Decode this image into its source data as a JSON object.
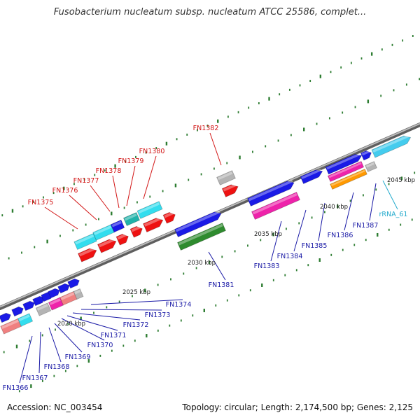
{
  "title": "Fusobacterium nucleatum subsp. nucleatum ATCC 25586, complet...",
  "footer": {
    "accession": "Accession: NC_003454",
    "topology": "Topology: circular; Length: 2,174,500 bp; Genes: 2,125"
  },
  "colors": {
    "backbone": "#8a8a8a",
    "tick": "#2e7d32",
    "gene_label": "#1a1aa6",
    "highlight_label": "#d21414",
    "rna_label": "#22aacc",
    "blue": "#1a1ae6",
    "cyan": "#33ddee",
    "red": "#ee1111",
    "green": "#2e8b2e",
    "magenta": "#ee22aa",
    "salmon": "#f08080",
    "gray": "#b4b4b4",
    "orange": "#ff9900",
    "teal": "#20b2aa",
    "skyblue": "#44ccee"
  },
  "ruler": [
    {
      "label": "2020 kbp"
    },
    {
      "label": "2025 kbp"
    },
    {
      "label": "2030 kbp"
    },
    {
      "label": "2035 kbp"
    },
    {
      "label": "2040 kbp"
    },
    {
      "label": "2045 kbp"
    }
  ],
  "labels": {
    "top": [
      {
        "text": "FN1375",
        "kind": "highlight"
      },
      {
        "text": "FN1376",
        "kind": "highlight"
      },
      {
        "text": "FN1377",
        "kind": "highlight"
      },
      {
        "text": "FN1378",
        "kind": "highlight"
      },
      {
        "text": "FN1379",
        "kind": "highlight"
      },
      {
        "text": "FN1380",
        "kind": "highlight"
      },
      {
        "text": "FN1382",
        "kind": "highlight"
      }
    ],
    "bottom": [
      {
        "text": "FN1366",
        "kind": "gene"
      },
      {
        "text": "FN1367",
        "kind": "gene"
      },
      {
        "text": "FN1368",
        "kind": "gene"
      },
      {
        "text": "FN1369",
        "kind": "gene"
      },
      {
        "text": "FN1370",
        "kind": "gene"
      },
      {
        "text": "FN1371",
        "kind": "gene"
      },
      {
        "text": "FN1372",
        "kind": "gene"
      },
      {
        "text": "FN1373",
        "kind": "gene"
      },
      {
        "text": "FN1374",
        "kind": "gene"
      },
      {
        "text": "FN1381",
        "kind": "gene"
      },
      {
        "text": "FN1383",
        "kind": "gene"
      },
      {
        "text": "FN1384",
        "kind": "gene"
      },
      {
        "text": "FN1385",
        "kind": "gene"
      },
      {
        "text": "FN1386",
        "kind": "gene"
      },
      {
        "text": "FN1387",
        "kind": "gene"
      },
      {
        "text": "rRNA_61",
        "kind": "rna"
      }
    ]
  },
  "features": [
    {
      "color": "red",
      "arrow": true
    },
    {
      "color": "red",
      "arrow": true
    },
    {
      "color": "red",
      "arrow": true
    },
    {
      "color": "red",
      "arrow": true
    },
    {
      "color": "red",
      "arrow": true
    },
    {
      "color": "red",
      "arrow": true
    },
    {
      "color": "red",
      "arrow": true
    },
    {
      "color": "cyan",
      "arrow": false
    },
    {
      "color": "cyan",
      "arrow": false
    },
    {
      "color": "blue",
      "arrow": false
    },
    {
      "color": "teal",
      "arrow": false
    },
    {
      "color": "cyan",
      "arrow": false
    },
    {
      "color": "blue",
      "arrow": true
    },
    {
      "color": "green",
      "arrow": false
    },
    {
      "color": "gray",
      "arrow": false
    },
    {
      "color": "blue",
      "arrow": true
    },
    {
      "color": "magenta",
      "arrow": false
    },
    {
      "color": "blue",
      "arrow": true
    },
    {
      "color": "blue",
      "arrow": true
    },
    {
      "color": "magenta",
      "arrow": false
    },
    {
      "color": "orange",
      "arrow": false
    },
    {
      "color": "gray",
      "arrow": false
    },
    {
      "color": "blue",
      "arrow": true
    },
    {
      "color": "skyblue",
      "arrow": true
    },
    {
      "color": "salmon",
      "arrow": false
    },
    {
      "color": "cyan",
      "arrow": false
    },
    {
      "color": "gray",
      "arrow": false
    },
    {
      "color": "magenta",
      "arrow": false
    },
    {
      "color": "salmon",
      "arrow": false
    },
    {
      "color": "gray",
      "arrow": false
    }
  ]
}
